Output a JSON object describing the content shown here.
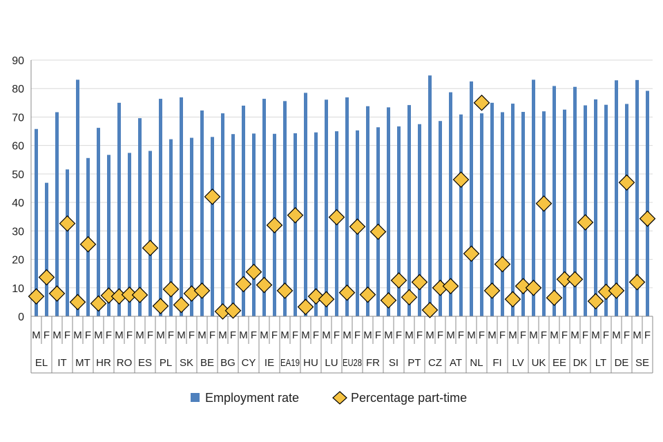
{
  "chart_data": {
    "type": "bar",
    "title": "",
    "xlabel": "",
    "ylabel": "",
    "ylim": [
      0,
      90
    ],
    "yticks": [
      0,
      10,
      20,
      30,
      40,
      50,
      60,
      70,
      80,
      90
    ],
    "grid": true,
    "legend_position": "bottom-center",
    "sex_labels": [
      "M",
      "F"
    ],
    "countries": [
      "EL",
      "IT",
      "MT",
      "HR",
      "RO",
      "ES",
      "PL",
      "SK",
      "BE",
      "BG",
      "CY",
      "IE",
      "EA19",
      "HU",
      "LU",
      "EU28",
      "FR",
      "SI",
      "PT",
      "CZ",
      "AT",
      "NL",
      "FI",
      "LV",
      "UK",
      "EE",
      "DK",
      "LT",
      "DE",
      "SE"
    ],
    "series": [
      {
        "name": "Employment rate",
        "kind": "bar",
        "color": "#4f81bd",
        "values": [
          [
            65.8,
            46.9
          ],
          [
            71.7,
            51.6
          ],
          [
            83.1,
            55.6
          ],
          [
            66.2,
            56.7
          ],
          [
            75.0,
            57.4
          ],
          [
            69.6,
            58.1
          ],
          [
            76.4,
            62.2
          ],
          [
            76.9,
            62.7
          ],
          [
            72.3,
            63.0
          ],
          [
            71.3,
            64.0
          ],
          [
            74.0,
            64.2
          ],
          [
            76.4,
            64.1
          ],
          [
            75.6,
            64.3
          ],
          [
            78.5,
            64.6
          ],
          [
            76.1,
            65.0
          ],
          [
            76.9,
            65.3
          ],
          [
            73.8,
            66.4
          ],
          [
            73.4,
            66.7
          ],
          [
            74.2,
            67.5
          ],
          [
            84.6,
            68.6
          ],
          [
            78.7,
            70.9
          ],
          [
            82.5,
            71.3
          ],
          [
            75.0,
            71.7
          ],
          [
            74.7,
            71.8
          ],
          [
            83.1,
            72.0
          ],
          [
            80.9,
            72.6
          ],
          [
            80.6,
            74.1
          ],
          [
            76.2,
            74.3
          ],
          [
            82.9,
            74.6
          ],
          [
            83.0,
            79.2
          ]
        ]
      },
      {
        "name": "Percentage part-time",
        "kind": "marker",
        "color": "#f6c342",
        "values": [
          [
            7,
            13.7
          ],
          [
            8,
            32.6
          ],
          [
            5,
            25.3
          ],
          [
            4.5,
            7.3
          ],
          [
            7,
            7.6
          ],
          [
            7.5,
            24.0
          ],
          [
            3.6,
            9.5
          ],
          [
            4,
            8
          ],
          [
            9,
            42
          ],
          [
            1.7,
            2
          ],
          [
            11.3,
            15.6
          ],
          [
            11,
            32
          ],
          [
            9,
            35.5
          ],
          [
            3.3,
            7
          ],
          [
            6,
            34.8
          ],
          [
            8.3,
            31.5
          ],
          [
            7.6,
            29.7
          ],
          [
            5.6,
            12.6
          ],
          [
            6.7,
            12
          ],
          [
            2.2,
            10
          ],
          [
            10.6,
            48
          ],
          [
            22,
            75
          ],
          [
            9,
            18.3
          ],
          [
            6,
            10.6
          ],
          [
            10,
            39.6
          ],
          [
            6.5,
            13
          ],
          [
            13,
            33
          ],
          [
            5.3,
            8.6
          ],
          [
            9,
            47
          ],
          [
            12,
            34.3
          ]
        ]
      }
    ]
  }
}
